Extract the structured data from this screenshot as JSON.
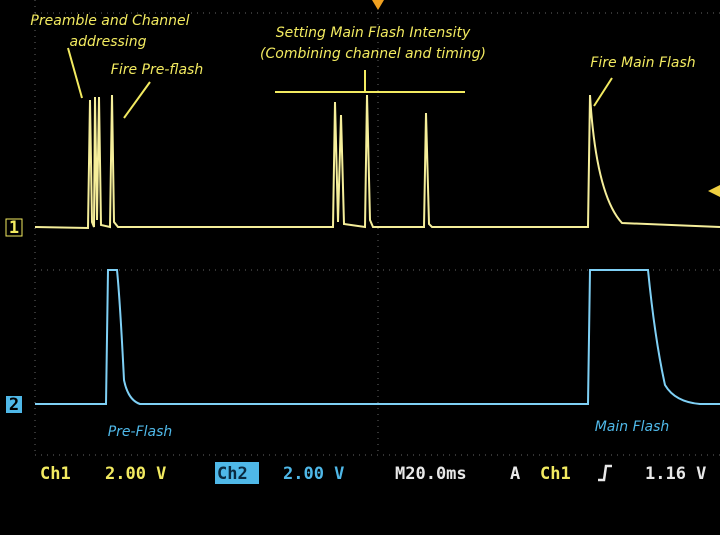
{
  "annotations": {
    "preamble": [
      "Preamble and Channel",
      "addressing"
    ],
    "fire_preflash": "Fire Pre-flash",
    "setting_intensity": [
      "Setting Main Flash Intensity",
      "(Combining channel and timing)"
    ],
    "fire_main_flash": "Fire Main Flash",
    "pre_flash": "Pre-Flash",
    "main_flash": "Main Flash"
  },
  "channel_markers": [
    "1",
    "2"
  ],
  "status_bar": {
    "ch1_label": "Ch1",
    "ch1_scale": "2.00 V",
    "ch2_label": "Ch2",
    "ch2_scale": "2.00 V",
    "timebase": "M20.0ms",
    "trigger_mode": "A",
    "trigger_source": "Ch1",
    "trigger_level": "1.16 V"
  }
}
